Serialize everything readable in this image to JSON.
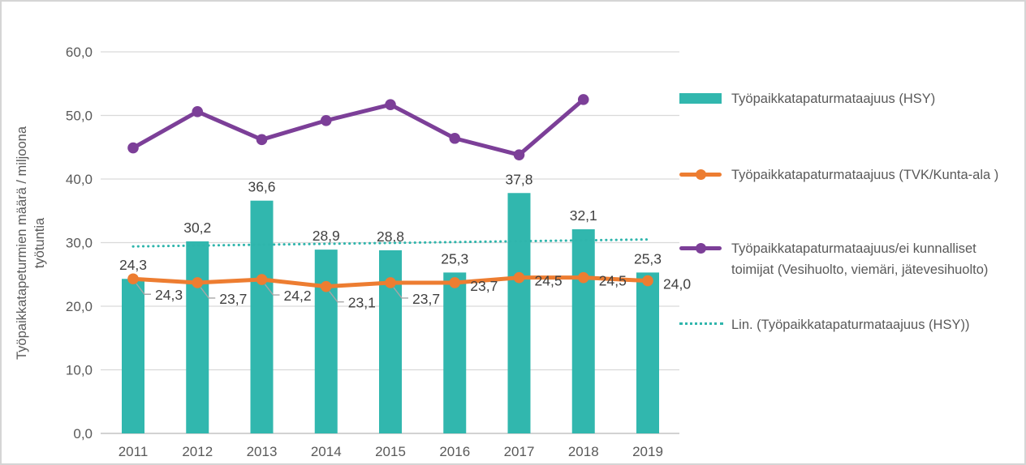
{
  "chart_data": {
    "type": "bar",
    "title": "",
    "categories": [
      "2011",
      "2012",
      "2013",
      "2014",
      "2015",
      "2016",
      "2017",
      "2018",
      "2019"
    ],
    "series": [
      {
        "name": "Työpaikkatapaturmataajuus (HSY)",
        "type": "bar",
        "color": "#31b7ae",
        "values": [
          24.3,
          30.2,
          36.6,
          28.9,
          28.8,
          25.3,
          37.8,
          32.1,
          25.3
        ],
        "data_labels": [
          "24,3",
          "30,2",
          "36,6",
          "28,9",
          "28,8",
          "25,3",
          "37,8",
          "32,1",
          "25,3"
        ]
      },
      {
        "name": "Työpaikkatapaturmataajuus (TVK/Kunta-ala )",
        "type": "line",
        "color": "#ed7d31",
        "values": [
          24.3,
          23.7,
          24.2,
          23.1,
          23.7,
          23.7,
          24.5,
          24.5,
          24.0
        ],
        "data_labels": [
          "24,3",
          "23,7",
          "24,2",
          "23,1",
          "23,7",
          "23,7",
          "24,5",
          "24,5",
          "24,0"
        ],
        "label_placement": [
          "leader",
          "leader",
          "leader",
          "leader",
          "leader",
          "right",
          "right",
          "right",
          "right"
        ]
      },
      {
        "name": "Työpaikkatapaturmataajuus/ei kunnalliset toimijat (Vesihuolto, viemäri, jätevesihuolto)",
        "type": "line",
        "color": "#7c3f98",
        "values": [
          44.9,
          50.6,
          46.2,
          49.2,
          51.7,
          46.4,
          43.8,
          52.5,
          null
        ],
        "data_labels": [
          "",
          "",
          "",
          "",
          "",
          "",
          "",
          "",
          ""
        ]
      },
      {
        "name": "Lin. (Työpaikkatapaturmataajuus (HSY))",
        "type": "trendline",
        "color": "#2fb5ac",
        "trend_start": 29.4,
        "trend_end": 30.5
      }
    ],
    "xlabel": "",
    "ylabel": "Työpaikkatapeturmien määrä / miljoona työtuntia",
    "ylabel_lines": [
      "Työpaikkatapeturmien määrä / miljoona",
      "työtuntia"
    ],
    "ylim": [
      0,
      60
    ],
    "ytick_step": 10,
    "ytick_labels": [
      "0,0",
      "10,0",
      "20,0",
      "30,0",
      "40,0",
      "50,0",
      "60,0"
    ],
    "grid": "horizontal",
    "legend_position": "right",
    "decimal_separator": ","
  },
  "legend": {
    "items": [
      {
        "label": "Työpaikkatapaturmataajuus (HSY)",
        "swatch": "bar",
        "color": "#31b7ae"
      },
      {
        "label": "Työpaikkatapaturmataajuus (TVK/Kunta-ala )",
        "swatch": "line-dot",
        "color": "#ed7d31"
      },
      {
        "label": "Työpaikkatapaturmataajuus/ei kunnalliset toimijat (Vesihuolto, viemäri, jätevesihuolto)",
        "swatch": "line-dot",
        "color": "#7c3f98"
      },
      {
        "label": "Lin. (Työpaikkatapaturmataajuus (HSY))",
        "swatch": "dotted-line",
        "color": "#2fb5ac"
      }
    ]
  },
  "colors": {
    "gridline": "#d9d9d9",
    "axis_line": "#d2d2d2",
    "axis_text": "#595959",
    "data_label_text": "#404040",
    "leader_line": "#a6a6a6",
    "frame_border": "#d5d5d5"
  }
}
